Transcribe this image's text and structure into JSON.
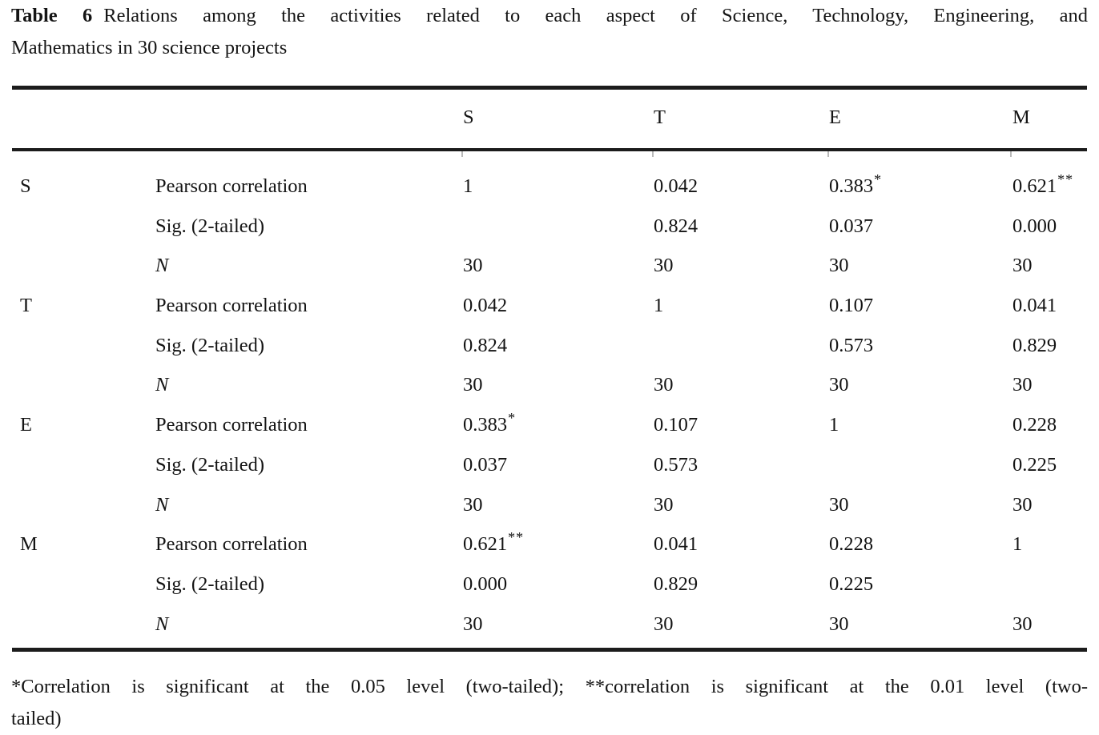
{
  "caption": {
    "label": "Table 6",
    "line1": "Relations among the activities related to each aspect of Science, Technology, Engineering, and",
    "line2": "Mathematics in 30 science projects"
  },
  "table": {
    "columns": [
      "S",
      "T",
      "E",
      "M"
    ],
    "blocks": [
      {
        "label": "S",
        "rows": [
          {
            "attr": "Pearson correlation",
            "cells": [
              {
                "v": "1"
              },
              {
                "v": "0.042"
              },
              {
                "v": "0.383",
                "sup": "*"
              },
              {
                "v": "0.621",
                "sup": "**"
              }
            ]
          },
          {
            "attr": "Sig. (2-tailed)",
            "cells": [
              {
                "v": ""
              },
              {
                "v": "0.824"
              },
              {
                "v": "0.037"
              },
              {
                "v": "0.000"
              }
            ]
          },
          {
            "attr": "N",
            "italic": true,
            "cells": [
              {
                "v": "30"
              },
              {
                "v": "30"
              },
              {
                "v": "30"
              },
              {
                "v": "30"
              }
            ]
          }
        ]
      },
      {
        "label": "T",
        "rows": [
          {
            "attr": "Pearson correlation",
            "cells": [
              {
                "v": "0.042"
              },
              {
                "v": "1"
              },
              {
                "v": "0.107"
              },
              {
                "v": "0.041"
              }
            ]
          },
          {
            "attr": "Sig. (2-tailed)",
            "cells": [
              {
                "v": "0.824"
              },
              {
                "v": ""
              },
              {
                "v": "0.573"
              },
              {
                "v": "0.829"
              }
            ]
          },
          {
            "attr": "N",
            "italic": true,
            "cells": [
              {
                "v": "30"
              },
              {
                "v": "30"
              },
              {
                "v": "30"
              },
              {
                "v": "30"
              }
            ]
          }
        ]
      },
      {
        "label": "E",
        "rows": [
          {
            "attr": "Pearson correlation",
            "cells": [
              {
                "v": "0.383",
                "sup": "*"
              },
              {
                "v": "0.107"
              },
              {
                "v": "1"
              },
              {
                "v": "0.228"
              }
            ]
          },
          {
            "attr": "Sig. (2-tailed)",
            "cells": [
              {
                "v": "0.037"
              },
              {
                "v": "0.573"
              },
              {
                "v": ""
              },
              {
                "v": "0.225"
              }
            ]
          },
          {
            "attr": "N",
            "italic": true,
            "cells": [
              {
                "v": "30"
              },
              {
                "v": "30"
              },
              {
                "v": "30"
              },
              {
                "v": "30"
              }
            ]
          }
        ]
      },
      {
        "label": "M",
        "rows": [
          {
            "attr": "Pearson correlation",
            "cells": [
              {
                "v": "0.621",
                "sup": "**"
              },
              {
                "v": "0.041"
              },
              {
                "v": "0.228"
              },
              {
                "v": "1"
              }
            ]
          },
          {
            "attr": "Sig. (2-tailed)",
            "cells": [
              {
                "v": "0.000"
              },
              {
                "v": "0.829"
              },
              {
                "v": "0.225"
              },
              {
                "v": ""
              }
            ]
          },
          {
            "attr": "N",
            "italic": true,
            "cells": [
              {
                "v": "30"
              },
              {
                "v": "30"
              },
              {
                "v": "30"
              },
              {
                "v": "30"
              }
            ]
          }
        ]
      }
    ]
  },
  "footnote": {
    "line1": "*Correlation is significant at the 0.05 level (two-tailed); **correlation is significant at the 0.01 level (two-",
    "line2": "tailed)"
  }
}
